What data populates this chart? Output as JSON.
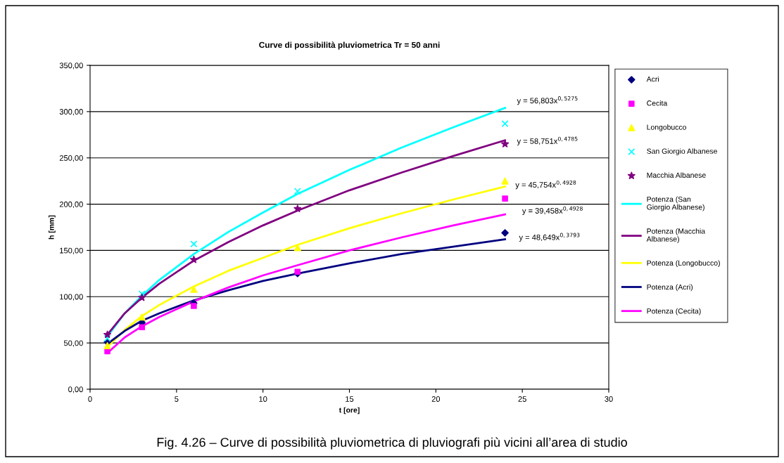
{
  "chart_data": {
    "type": "scatter",
    "title": "Curve di possibilità pluviometrica Tr = 50 anni",
    "xlabel": "t [ore]",
    "ylabel": "h [mm]",
    "xlim": [
      0,
      30
    ],
    "xticks": [
      0,
      5,
      10,
      15,
      20,
      25,
      30
    ],
    "ylim": [
      0,
      350
    ],
    "yticks": [
      {
        "value": 0,
        "label": "0,00"
      },
      {
        "value": 50,
        "label": "50,00"
      },
      {
        "value": 100,
        "label": "100,00"
      },
      {
        "value": 150,
        "label": "150,00"
      },
      {
        "value": 200,
        "label": "200,00"
      },
      {
        "value": 250,
        "label": "250,00"
      },
      {
        "value": 300,
        "label": "300,00"
      },
      {
        "value": 350,
        "label": "350,00"
      }
    ],
    "grid": "y",
    "legend": "right",
    "series": [
      {
        "name": "Acri",
        "marker": "diamond",
        "color": "#000080",
        "x": [
          1,
          3,
          6,
          12,
          24
        ],
        "values": [
          51,
          72,
          93,
          125,
          169
        ]
      },
      {
        "name": "Cecita",
        "marker": "square",
        "color": "#ff00ff",
        "x": [
          1,
          3,
          6,
          12,
          24
        ],
        "values": [
          41,
          67,
          90,
          127,
          206
        ]
      },
      {
        "name": "Longobucco",
        "marker": "triangle",
        "color": "#ffff00",
        "x": [
          1,
          3,
          6,
          12,
          24
        ],
        "values": [
          47,
          78,
          108,
          153,
          225
        ]
      },
      {
        "name": "San Giorgio Albanese",
        "marker": "cross",
        "color": "#00ffff",
        "x": [
          1,
          3,
          6,
          12,
          24
        ],
        "values": [
          55,
          103,
          157,
          214,
          287
        ]
      },
      {
        "name": "Macchia Albanese",
        "marker": "star",
        "color": "#800080",
        "x": [
          1,
          3,
          6,
          12,
          24
        ],
        "values": [
          59,
          99,
          140,
          195,
          265
        ]
      },
      {
        "name": "Potenza (San Giorgio Albanese)",
        "type": "line",
        "marker": "none",
        "color": "#00ffff",
        "x": [
          1,
          2,
          3,
          4,
          6,
          8,
          10,
          12,
          15,
          18,
          21,
          24
        ],
        "values": [
          57,
          82,
          101,
          118,
          146,
          170,
          191,
          211,
          237,
          261,
          283,
          304
        ]
      },
      {
        "name": "Potenza (Macchia Albanese)",
        "type": "line",
        "marker": "none",
        "color": "#800080",
        "x": [
          1,
          2,
          3,
          4,
          6,
          8,
          10,
          12,
          15,
          18,
          21,
          24
        ],
        "values": [
          59,
          82,
          99,
          114,
          139,
          159,
          177,
          193,
          215,
          234,
          252,
          269
        ]
      },
      {
        "name": "Potenza (Longobucco)",
        "type": "line",
        "marker": "none",
        "color": "#ffff00",
        "x": [
          1,
          2,
          3,
          4,
          6,
          8,
          10,
          12,
          15,
          18,
          21,
          24
        ],
        "values": [
          46,
          64,
          79,
          91,
          111,
          128,
          142,
          156,
          174,
          190,
          205,
          219
        ]
      },
      {
        "name": "Potenza (Acri)",
        "type": "line",
        "marker": "none",
        "color": "#000080",
        "x": [
          1,
          2,
          3,
          4,
          6,
          8,
          10,
          12,
          15,
          18,
          21,
          24
        ],
        "values": [
          49,
          63,
          74,
          82,
          96,
          107,
          117,
          125,
          136,
          146,
          154,
          162
        ]
      },
      {
        "name": "Potenza (Cecita)",
        "type": "line",
        "marker": "none",
        "color": "#ff00ff",
        "x": [
          1,
          2,
          3,
          4,
          6,
          8,
          10,
          12,
          15,
          18,
          21,
          24
        ],
        "values": [
          39,
          56,
          68,
          78,
          95,
          110,
          123,
          134,
          150,
          164,
          177,
          189
        ]
      }
    ],
    "annotations": [
      "y = 56,803x$^{0,5275}$",
      "y = 58,751x$^{0,4785}$",
      "y = 45,754x$^{0,4928}$",
      "y = 39,458x$^{0,4928}$",
      "y = 48,649x$^{0,3793}$",
      "Fig. 4.26 – Curve di possibilità pluviometrica di pluviografi più vicini all’area di studio"
    ]
  }
}
